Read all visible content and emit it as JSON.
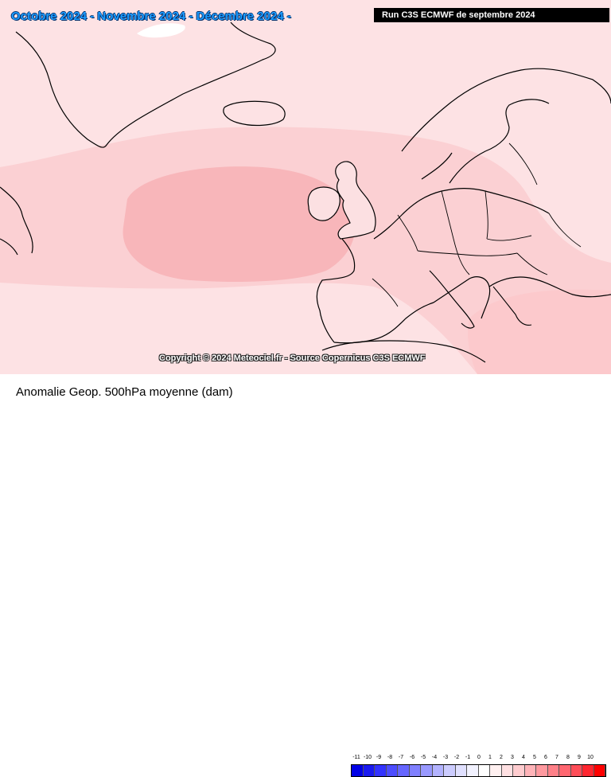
{
  "map": {
    "period_title": "Octobre 2024 - Novembre 2024 - Décembre 2024 -",
    "run_label": "Run C3S ECMWF de septembre 2024",
    "copyright": "Copyright © 2024 Meteociel.fr - Source Copernicus C3S ECMWF"
  },
  "footer": {
    "title": "Anomalie Geop. 500hPa moyenne (dam)"
  },
  "legend": {
    "labels": [
      "-11",
      "-10",
      "-9",
      "-8",
      "-7",
      "-6",
      "-5",
      "-4",
      "-3",
      "-2",
      "-1",
      "0",
      "1",
      "2",
      "3",
      "4",
      "5",
      "6",
      "7",
      "8",
      "9",
      "10"
    ],
    "colors": [
      "#0000e6",
      "#1a1af0",
      "#3333ff",
      "#4d4dff",
      "#6666ff",
      "#8080ff",
      "#9999ff",
      "#b3b3ff",
      "#ccccff",
      "#e0e0ff",
      "#f2f2ff",
      "#ffffff",
      "#fff0f0",
      "#ffe0e2",
      "#ffcccf",
      "#ffb3b8",
      "#ff999f",
      "#ff8088",
      "#ff6670",
      "#ff4d58",
      "#ff2630",
      "#ff0000"
    ]
  }
}
